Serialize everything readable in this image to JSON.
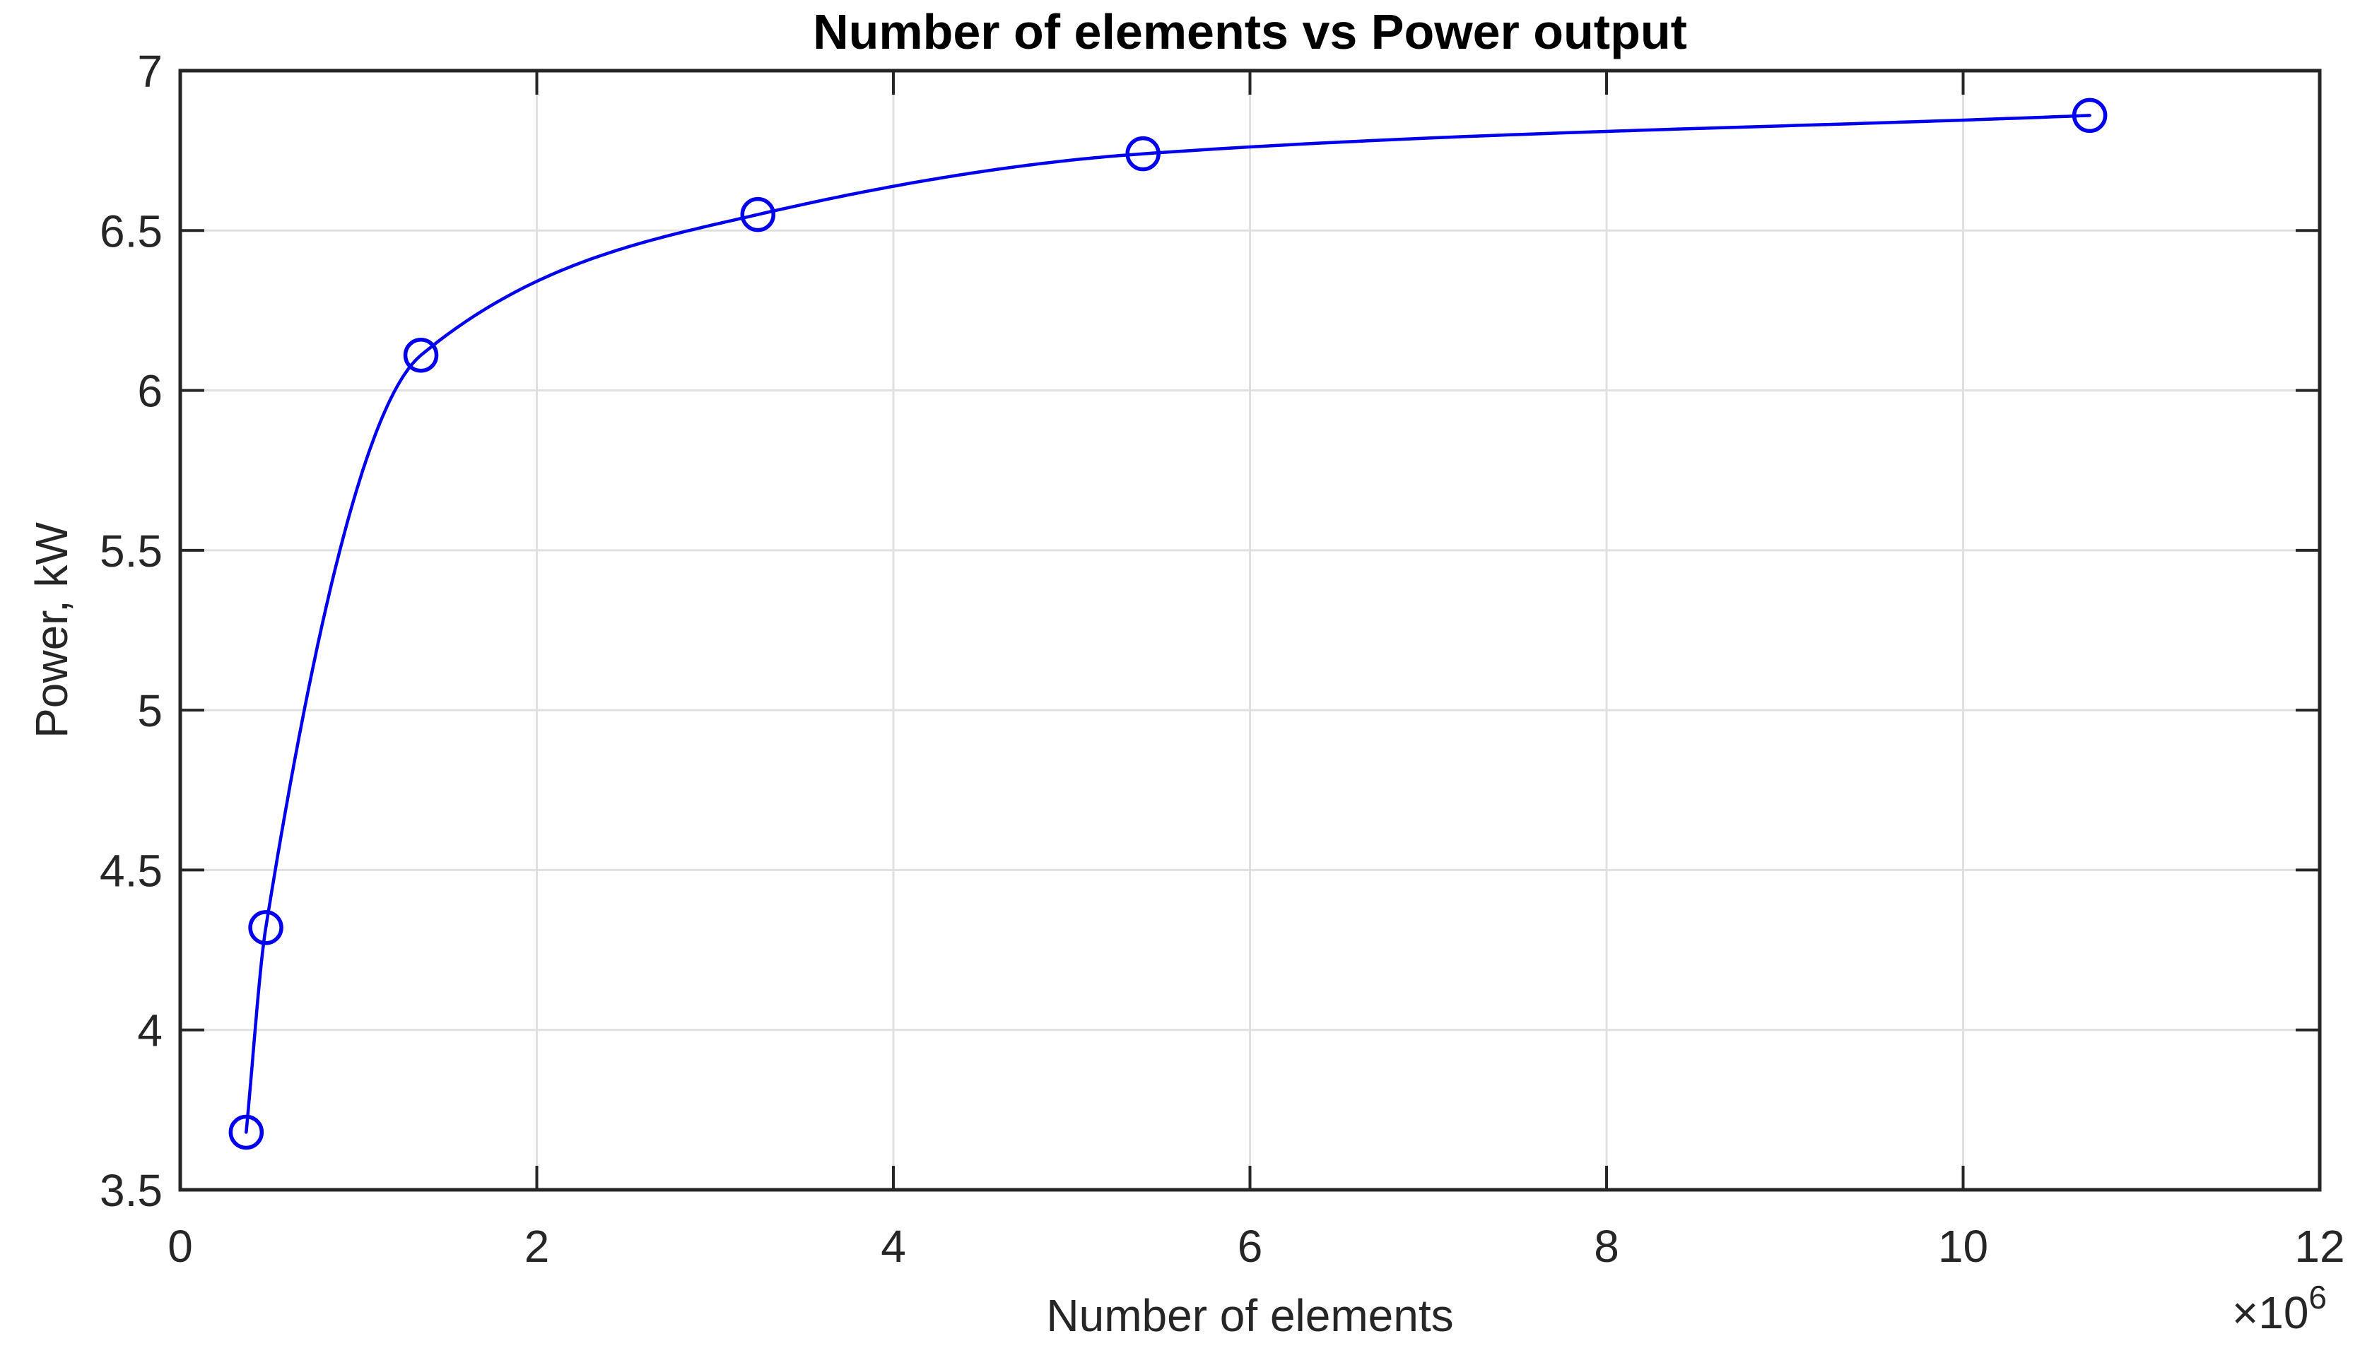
{
  "figure": {
    "background_color": "#ffffff",
    "axis_color": "#262626",
    "grid_color": "#e0e0e0",
    "title_color": "#000000"
  },
  "chart_data": {
    "type": "line",
    "title": "Number of elements vs Power output",
    "xlabel": "Number of elements",
    "ylabel": "Power, kW",
    "x_axis_multiplier_base": "×10",
    "x_axis_multiplier_exponent": "6",
    "xlim": [
      0,
      12
    ],
    "ylim": [
      3.5,
      7
    ],
    "xticks": [
      0,
      2,
      4,
      6,
      8,
      10,
      12
    ],
    "xtick_labels": [
      "0",
      "2",
      "4",
      "6",
      "8",
      "10",
      "12"
    ],
    "yticks": [
      3.5,
      4,
      4.5,
      5,
      5.5,
      6,
      6.5,
      7
    ],
    "ytick_labels": [
      "3.5",
      "4",
      "4.5",
      "5",
      "5.5",
      "6",
      "6.5",
      "7"
    ],
    "grid": true,
    "legend": null,
    "series": [
      {
        "name": "Power output",
        "color": "#0000ee",
        "marker": "circle",
        "interpolation": "pchip",
        "x": [
          0.37,
          0.48,
          1.35,
          3.24,
          5.4,
          10.71
        ],
        "y": [
          3.68,
          4.32,
          6.11,
          6.55,
          6.74,
          6.86
        ]
      }
    ]
  }
}
